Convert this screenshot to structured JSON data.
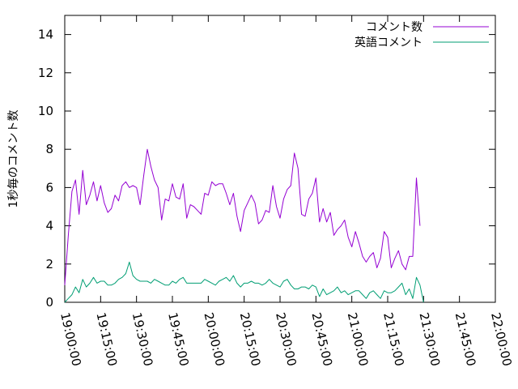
{
  "chart_data": {
    "type": "line",
    "title": "",
    "xlabel": "",
    "ylabel": "1秒毎のコメント数",
    "ylim": [
      0,
      15
    ],
    "xlim": [
      "19:00:00",
      "22:00:00"
    ],
    "grid": false,
    "legend_position": "top-right",
    "yticks": [
      "0",
      "2",
      "4",
      "6",
      "8",
      "10",
      "12",
      "14"
    ],
    "xticks": [
      "19:00:00",
      "19:15:00",
      "19:30:00",
      "19:45:00",
      "20:00:00",
      "20:15:00",
      "20:30:00",
      "20:45:00",
      "21:00:00",
      "21:15:00",
      "21:30:00",
      "21:45:00",
      "22:00:00"
    ],
    "x_start": "19:00:00",
    "x_step": "1:30",
    "series": [
      {
        "name": "コメント数",
        "color": "#9400d3",
        "values": [
          0.9,
          3.5,
          5.8,
          6.4,
          4.6,
          6.9,
          5.1,
          5.6,
          6.3,
          5.3,
          6.1,
          5.2,
          4.7,
          4.9,
          5.6,
          5.3,
          6.1,
          6.3,
          6.0,
          6.1,
          6.0,
          5.1,
          6.6,
          8.0,
          7.1,
          6.4,
          6.0,
          4.3,
          5.4,
          5.3,
          6.2,
          5.5,
          5.4,
          6.2,
          4.4,
          5.1,
          5.0,
          4.8,
          4.6,
          5.7,
          5.6,
          6.3,
          6.1,
          6.2,
          6.2,
          5.7,
          5.1,
          5.7,
          4.5,
          3.7,
          4.8,
          5.2,
          5.6,
          5.2,
          4.1,
          4.3,
          4.8,
          4.7,
          6.1,
          5.0,
          4.4,
          5.4,
          5.9,
          6.1,
          7.8,
          7.0,
          4.6,
          4.5,
          5.4,
          5.7,
          6.5,
          4.2,
          4.9,
          4.2,
          4.7,
          3.5,
          3.8,
          4.0,
          4.3,
          3.4,
          2.9,
          3.7,
          3.1,
          2.4,
          2.1,
          2.4,
          2.6,
          1.8,
          2.3,
          3.7,
          3.4,
          1.8,
          2.3,
          2.7,
          2.0,
          1.7,
          2.4,
          2.4,
          6.5,
          4.0
        ]
      },
      {
        "name": "英語コメント",
        "color": "#009e73",
        "values": [
          0.0,
          0.2,
          0.4,
          0.8,
          0.5,
          1.2,
          0.8,
          1.0,
          1.3,
          1.0,
          1.1,
          1.1,
          0.9,
          0.9,
          1.0,
          1.2,
          1.3,
          1.5,
          2.1,
          1.4,
          1.2,
          1.1,
          1.1,
          1.1,
          1.0,
          1.2,
          1.1,
          1.0,
          0.9,
          0.9,
          1.1,
          1.0,
          1.2,
          1.3,
          1.0,
          1.0,
          1.0,
          1.0,
          1.0,
          1.2,
          1.1,
          1.0,
          0.9,
          1.1,
          1.2,
          1.3,
          1.1,
          1.4,
          1.0,
          0.8,
          1.0,
          1.0,
          1.1,
          1.0,
          1.0,
          0.9,
          1.0,
          1.2,
          1.0,
          0.9,
          0.8,
          1.1,
          1.2,
          0.9,
          0.7,
          0.7,
          0.8,
          0.8,
          0.7,
          0.9,
          0.8,
          0.3,
          0.7,
          0.4,
          0.5,
          0.6,
          0.8,
          0.5,
          0.6,
          0.4,
          0.5,
          0.6,
          0.6,
          0.4,
          0.2,
          0.5,
          0.6,
          0.4,
          0.2,
          0.6,
          0.5,
          0.5,
          0.6,
          0.8,
          1.0,
          0.4,
          0.7,
          0.2,
          1.3,
          0.9,
          0.0
        ]
      }
    ]
  }
}
